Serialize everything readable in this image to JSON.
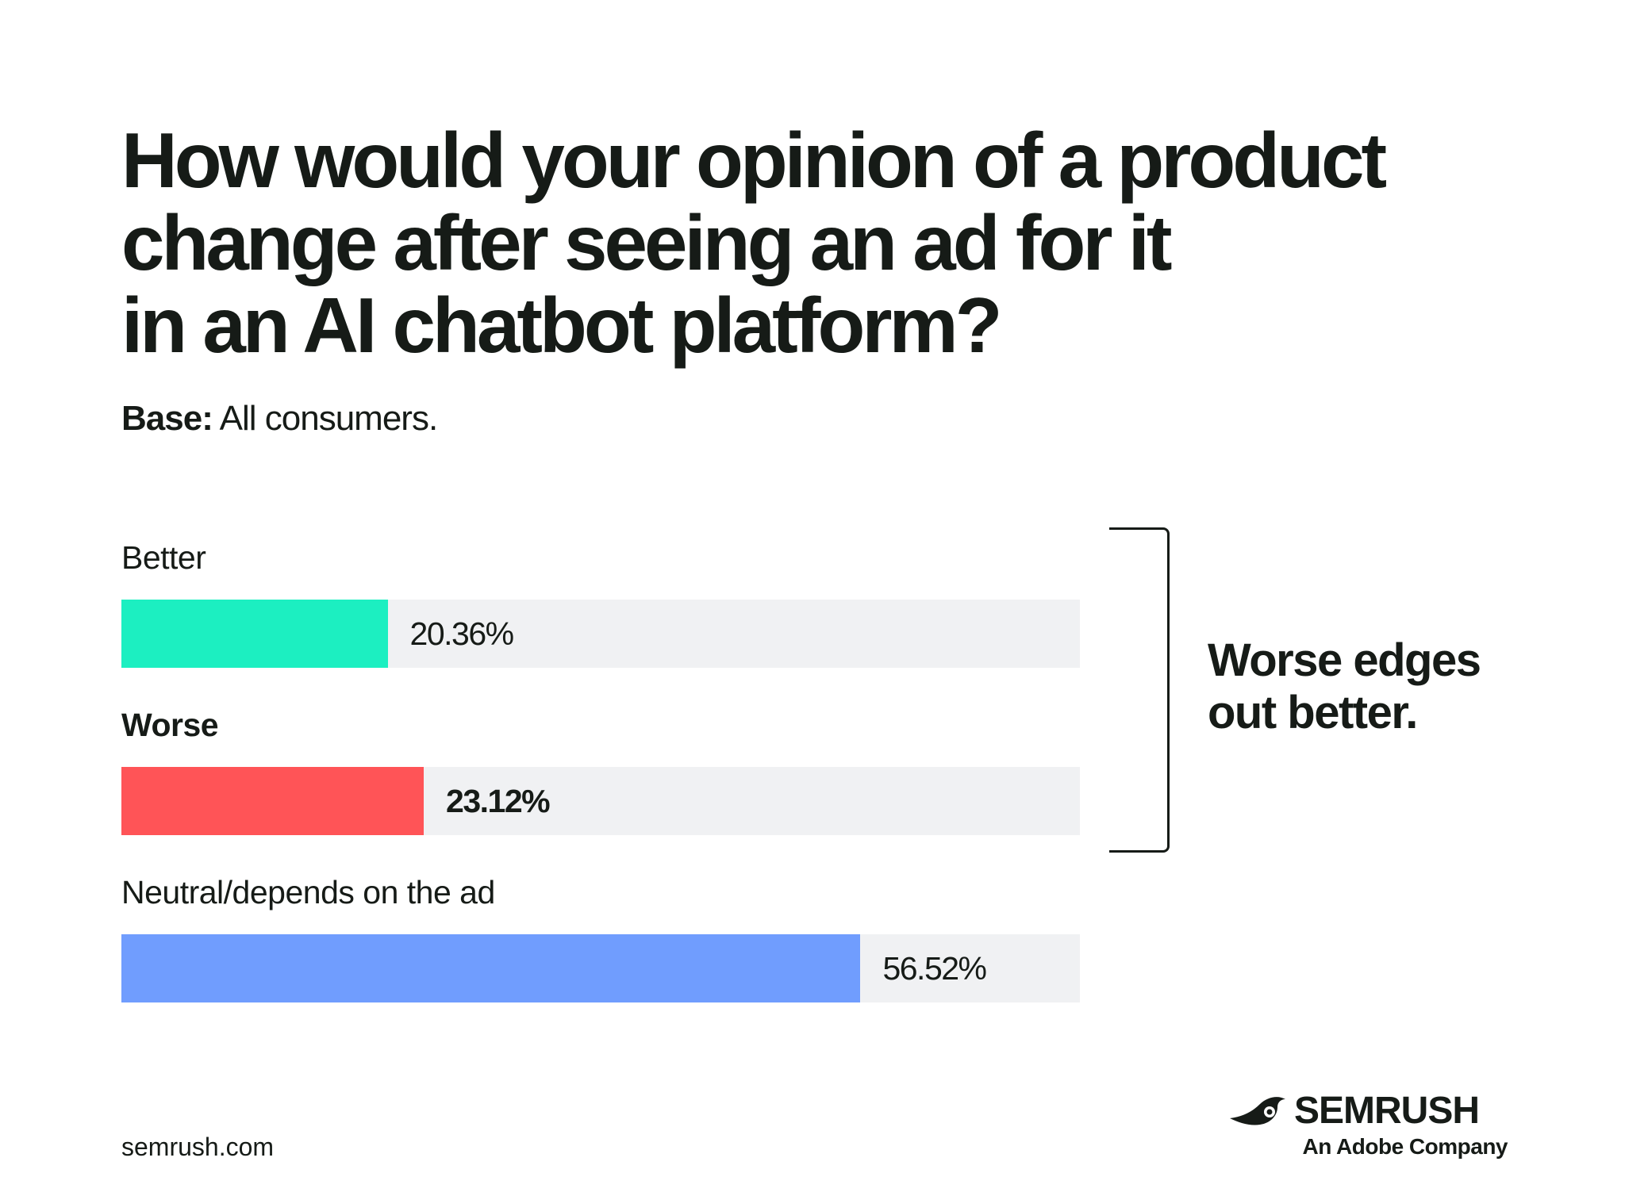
{
  "title_lines": [
    "How would your opinion of a product",
    "change after seeing an ad for it",
    "in an AI chatbot platform?"
  ],
  "base": {
    "label": "Base:",
    "text": " All consumers."
  },
  "annotation": "Worse edges out better.",
  "footer": {
    "url": "semrush.com"
  },
  "logo": {
    "wordmark": "SEMRUSH",
    "subtitle": "An Adobe Company",
    "icon": "semrush-comet-icon"
  },
  "colors": {
    "better": "#1cefc1",
    "worse": "#ff5457",
    "neutral": "#709dfe",
    "track": "#f0f1f3",
    "text": "#161b17"
  },
  "chart_data": {
    "type": "bar",
    "orientation": "horizontal",
    "categories": [
      "Better",
      "Worse",
      "Neutral/depends on the ad"
    ],
    "values": [
      20.36,
      23.12,
      56.52
    ],
    "value_labels": [
      "20.36%",
      "23.12%",
      "56.52%"
    ],
    "xlim": [
      0,
      73.3
    ],
    "unit": "%",
    "grid": false,
    "title": "How would your opinion of a product change after seeing an ad for it in an AI chatbot platform?",
    "subtitle": "Base: All consumers.",
    "annotations": [
      "Worse edges out better."
    ]
  }
}
